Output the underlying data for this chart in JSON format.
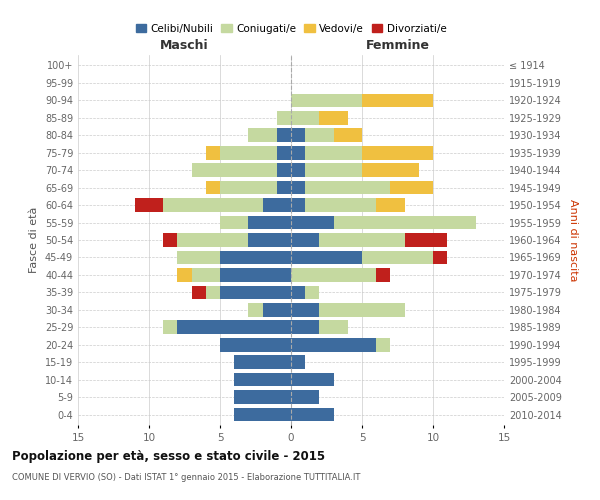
{
  "age_groups": [
    "0-4",
    "5-9",
    "10-14",
    "15-19",
    "20-24",
    "25-29",
    "30-34",
    "35-39",
    "40-44",
    "45-49",
    "50-54",
    "55-59",
    "60-64",
    "65-69",
    "70-74",
    "75-79",
    "80-84",
    "85-89",
    "90-94",
    "95-99",
    "100+"
  ],
  "birth_years": [
    "2010-2014",
    "2005-2009",
    "2000-2004",
    "1995-1999",
    "1990-1994",
    "1985-1989",
    "1980-1984",
    "1975-1979",
    "1970-1974",
    "1965-1969",
    "1960-1964",
    "1955-1959",
    "1950-1954",
    "1945-1949",
    "1940-1944",
    "1935-1939",
    "1930-1934",
    "1925-1929",
    "1920-1924",
    "1915-1919",
    "≤ 1914"
  ],
  "colors": {
    "celibe": "#3d6b9e",
    "coniugato": "#c5d9a0",
    "vedovo": "#f0c040",
    "divorziato": "#c0201c"
  },
  "males": {
    "celibe": [
      4,
      4,
      4,
      4,
      5,
      8,
      2,
      5,
      5,
      5,
      3,
      3,
      2,
      1,
      1,
      1,
      1,
      0,
      0,
      0,
      0
    ],
    "coniugato": [
      0,
      0,
      0,
      0,
      0,
      1,
      1,
      1,
      2,
      3,
      5,
      2,
      7,
      4,
      6,
      4,
      2,
      1,
      0,
      0,
      0
    ],
    "vedovo": [
      0,
      0,
      0,
      0,
      0,
      0,
      0,
      0,
      1,
      0,
      0,
      0,
      0,
      1,
      0,
      1,
      0,
      0,
      0,
      0,
      0
    ],
    "divorziato": [
      0,
      0,
      0,
      0,
      0,
      0,
      0,
      1,
      0,
      0,
      1,
      0,
      2,
      0,
      0,
      0,
      0,
      0,
      0,
      0,
      0
    ]
  },
  "females": {
    "nubile": [
      3,
      2,
      3,
      1,
      6,
      2,
      2,
      1,
      0,
      5,
      2,
      3,
      1,
      1,
      1,
      1,
      1,
      0,
      0,
      0,
      0
    ],
    "coniugata": [
      0,
      0,
      0,
      0,
      1,
      2,
      6,
      1,
      6,
      5,
      6,
      10,
      5,
      6,
      4,
      4,
      2,
      2,
      5,
      0,
      0
    ],
    "vedova": [
      0,
      0,
      0,
      0,
      0,
      0,
      0,
      0,
      0,
      0,
      0,
      0,
      2,
      3,
      4,
      5,
      2,
      2,
      5,
      0,
      0
    ],
    "divorziata": [
      0,
      0,
      0,
      0,
      0,
      0,
      0,
      0,
      1,
      1,
      3,
      0,
      0,
      0,
      0,
      0,
      0,
      0,
      0,
      0,
      0
    ]
  },
  "xlim": 15,
  "title": "Popolazione per età, sesso e stato civile - 2015",
  "subtitle": "COMUNE DI VERVIO (SO) - Dati ISTAT 1° gennaio 2015 - Elaborazione TUTTITALIA.IT",
  "ylabel_left": "Fasce di età",
  "ylabel_right": "Anni di nascita",
  "xlabel_left": "Maschi",
  "xlabel_right": "Femmine"
}
